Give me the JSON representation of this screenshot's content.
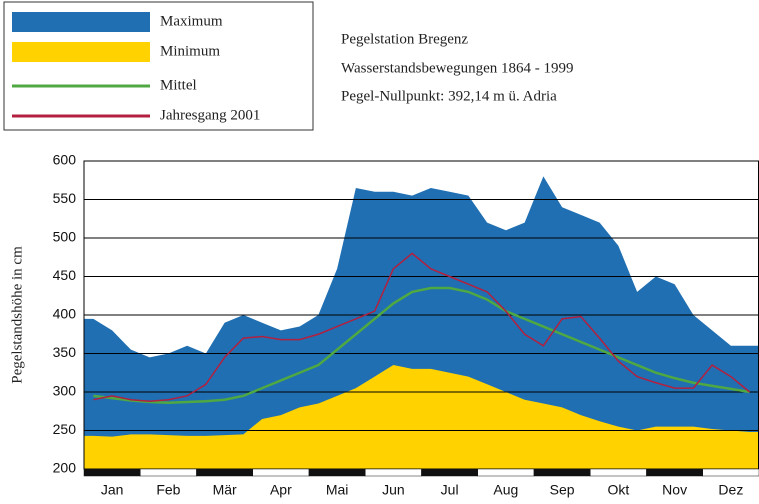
{
  "chart_data": {
    "type": "area",
    "title": "Pegelstation Bregenz",
    "subtitle": [
      "Wasserstandsbewegungen 1864 - 1999",
      "Pegel-Nullpunkt: 392,14 m ü. Adria"
    ],
    "y_label": "Pegelstandshöhe in cm",
    "categories": [
      null,
      "Jan",
      null,
      null,
      "Feb",
      null,
      null,
      "Mär",
      null,
      null,
      "Apr",
      null,
      null,
      "Mai",
      null,
      null,
      "Jun",
      null,
      null,
      "Jul",
      null,
      null,
      "Aug",
      null,
      null,
      "Sep",
      null,
      null,
      "Okt",
      null,
      null,
      "Nov",
      null,
      null,
      "Dez",
      null
    ],
    "ylim": [
      200,
      600
    ],
    "yticks": [
      200,
      250,
      300,
      350,
      400,
      450,
      500,
      550,
      600
    ],
    "grid": true,
    "series": [
      {
        "name": "Maximum",
        "color": "#1f6fb2",
        "kind": "area",
        "values": [
          395,
          380,
          355,
          345,
          350,
          360,
          350,
          390,
          400,
          390,
          380,
          385,
          400,
          460,
          565,
          560,
          560,
          555,
          565,
          560,
          555,
          520,
          510,
          520,
          580,
          540,
          530,
          520,
          490,
          430,
          450,
          440,
          400,
          380,
          360,
          360
        ]
      },
      {
        "name": "Minimum",
        "color": "#ffd200",
        "kind": "area",
        "values": [
          243,
          242,
          245,
          245,
          244,
          243,
          243,
          244,
          245,
          265,
          270,
          280,
          285,
          295,
          305,
          320,
          335,
          330,
          330,
          325,
          320,
          310,
          300,
          290,
          285,
          280,
          270,
          262,
          255,
          250,
          255,
          255,
          255,
          252,
          250,
          248
        ]
      },
      {
        "name": "Mittel",
        "color": "#4fa842",
        "kind": "line",
        "values": [
          295,
          292,
          289,
          287,
          286,
          287,
          288,
          290,
          295,
          305,
          315,
          325,
          335,
          355,
          375,
          395,
          415,
          430,
          435,
          435,
          430,
          420,
          405,
          395,
          385,
          375,
          365,
          355,
          345,
          335,
          325,
          318,
          312,
          308,
          304,
          300
        ]
      },
      {
        "name": "Jahresgang 2001",
        "color": "#b3203f",
        "kind": "line",
        "values": [
          290,
          295,
          290,
          288,
          290,
          295,
          310,
          345,
          370,
          372,
          368,
          368,
          375,
          385,
          395,
          405,
          460,
          480,
          460,
          450,
          440,
          430,
          405,
          375,
          360,
          395,
          398,
          370,
          340,
          320,
          312,
          305,
          305,
          335,
          320,
          300
        ]
      }
    ]
  }
}
